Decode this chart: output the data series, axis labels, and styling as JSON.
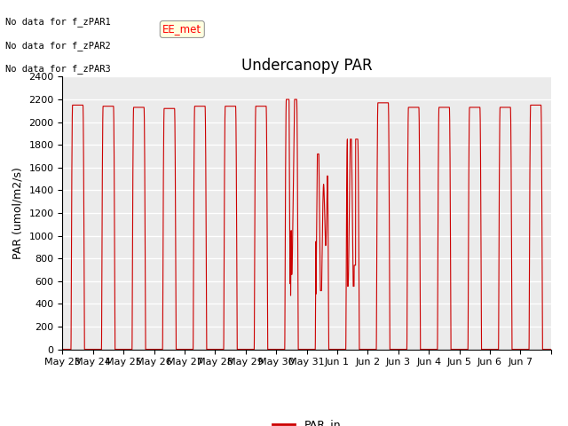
{
  "title": "Undercanopy PAR",
  "ylabel": "PAR (umol/m2/s)",
  "ylim": [
    0,
    2400
  ],
  "yticks": [
    0,
    200,
    400,
    600,
    800,
    1000,
    1200,
    1400,
    1600,
    1800,
    2000,
    2200,
    2400
  ],
  "line_color": "#cc0000",
  "legend_label": "PAR_in",
  "bg_color": "#ebebeb",
  "annotations": [
    "No data for f_zPAR1",
    "No data for f_zPAR2",
    "No data for f_zPAR3"
  ],
  "ee_met_label": "EE_met",
  "x_tick_labels": [
    "May 23",
    "May 24",
    "May 25",
    "May 26",
    "May 27",
    "May 28",
    "May 29",
    "May 30",
    "May 31",
    "Jun 1",
    "Jun 2",
    "Jun 3",
    "Jun 4",
    "Jun 5",
    "Jun 6",
    "Jun 7",
    ""
  ]
}
